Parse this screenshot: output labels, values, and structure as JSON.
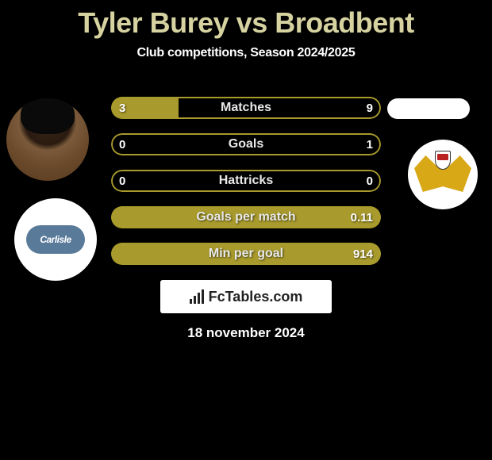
{
  "title": "Tyler Burey vs Broadbent",
  "subtitle": "Club competitions, Season 2024/2025",
  "colors": {
    "title": "#d6d3a1",
    "accent": "#a89a2c",
    "background": "#000000",
    "text": "#ffffff"
  },
  "stats": [
    {
      "label": "Matches",
      "left_value": "3",
      "right_value": "9",
      "left_pct": 25,
      "right_pct": 0,
      "fill_mode": "left"
    },
    {
      "label": "Goals",
      "left_value": "0",
      "right_value": "1",
      "left_pct": 0,
      "right_pct": 0,
      "fill_mode": "none"
    },
    {
      "label": "Hattricks",
      "left_value": "0",
      "right_value": "0",
      "left_pct": 0,
      "right_pct": 0,
      "fill_mode": "none"
    },
    {
      "label": "Goals per match",
      "left_value": "",
      "right_value": "0.11",
      "left_pct": 100,
      "right_pct": 0,
      "fill_mode": "full"
    },
    {
      "label": "Min per goal",
      "left_value": "",
      "right_value": "914",
      "left_pct": 100,
      "right_pct": 0,
      "fill_mode": "full"
    }
  ],
  "left_club": "Carlisle",
  "watermark": "FcTables.com",
  "date": "18 november 2024"
}
